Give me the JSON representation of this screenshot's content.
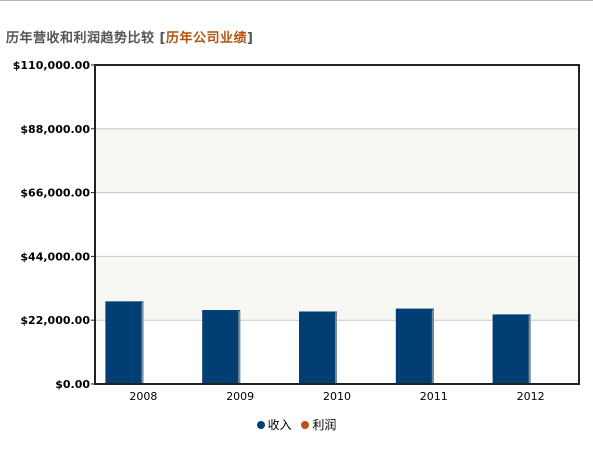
{
  "header": {
    "title": "历年营收和利润趋势比较",
    "bracket_open": "[",
    "link": "历年公司业绩",
    "bracket_close": "]"
  },
  "colors": {
    "revenue": "#003e74",
    "profit": "#c0501a",
    "band": "#f7f7f3",
    "grid": "#c8c8c8",
    "axis": "#222222",
    "link": "#b4530c"
  },
  "chart_data": {
    "type": "bar",
    "categories": [
      "2008",
      "2009",
      "2010",
      "2011",
      "2012"
    ],
    "series": [
      {
        "name": "收入",
        "values": [
          28500,
          25500,
          25000,
          26000,
          24000
        ]
      },
      {
        "name": "利润",
        "values": [
          0,
          0,
          300,
          0,
          0
        ]
      }
    ],
    "ylim": [
      0,
      110000
    ],
    "yticks": [
      0,
      22000,
      44000,
      66000,
      88000,
      110000
    ],
    "ytick_labels": [
      "$0.00",
      "$22,000.00",
      "$44,000.00",
      "$66,000.00",
      "$88,000.00",
      "$110,000.00"
    ],
    "grid": true,
    "legend_position": "bottom-center",
    "title": "",
    "xlabel": "",
    "ylabel": ""
  },
  "legend": [
    {
      "label": "收入",
      "color_key": "revenue"
    },
    {
      "label": "利润",
      "color_key": "profit"
    }
  ]
}
